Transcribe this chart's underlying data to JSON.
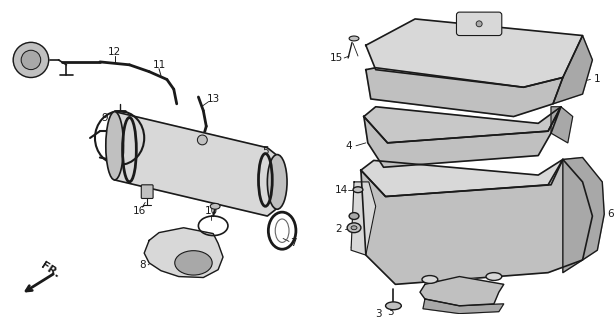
{
  "bg_color": "#ffffff",
  "line_color": "#1a1a1a",
  "fill_light": "#d8d8d8",
  "fill_mid": "#c0c0c0",
  "fill_dark": "#a8a8a8",
  "fill_darker": "#888888",
  "fig_width": 6.14,
  "fig_height": 3.2,
  "dpi": 100,
  "font_size": 7.5
}
